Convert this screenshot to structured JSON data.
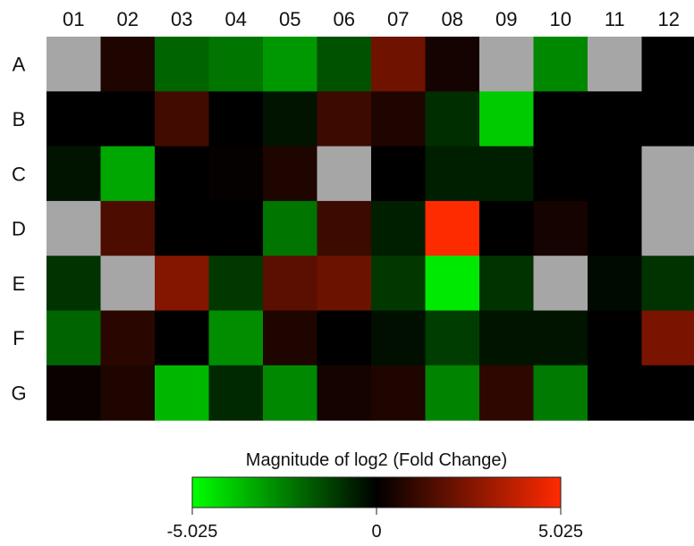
{
  "chart_data": {
    "type": "heatmap",
    "columns": [
      "01",
      "02",
      "03",
      "04",
      "05",
      "06",
      "07",
      "08",
      "09",
      "10",
      "11",
      "12"
    ],
    "rows": [
      "A",
      "B",
      "C",
      "D",
      "E",
      "F",
      "G"
    ],
    "values": [
      [
        null,
        0.6,
        -2.0,
        -2.3,
        -3.0,
        -1.6,
        2.2,
        0.4,
        null,
        -2.7,
        null,
        0.0
      ],
      [
        0.0,
        0.0,
        1.3,
        0.0,
        -0.4,
        1.2,
        0.6,
        -0.9,
        -4.0,
        0.0,
        0.0,
        0.0
      ],
      [
        -0.4,
        -3.3,
        0.0,
        0.1,
        0.6,
        null,
        0.0,
        -0.6,
        -0.6,
        0.0,
        0.0,
        null
      ],
      [
        null,
        1.5,
        0.0,
        0.0,
        -2.3,
        1.2,
        -0.6,
        5.0,
        0.0,
        0.4,
        0.0,
        null
      ],
      [
        -1.0,
        null,
        2.6,
        -1.1,
        1.8,
        2.1,
        -1.1,
        -4.6,
        -1.0,
        null,
        -0.2,
        -1.0
      ],
      [
        -2.0,
        0.8,
        0.0,
        -2.8,
        0.6,
        0.0,
        -0.3,
        -1.2,
        -0.4,
        -0.4,
        0.0,
        2.4
      ],
      [
        0.2,
        0.6,
        -3.6,
        -0.8,
        -2.7,
        0.4,
        0.6,
        -2.6,
        0.9,
        -2.4,
        0.0,
        0.0
      ]
    ],
    "missing_color": "#a6a6a6",
    "color_scale": {
      "title": "Magnitude of log2 (Fold Change)",
      "min": -5.025,
      "mid": 0,
      "max": 5.025,
      "min_label": "-5.025",
      "mid_label": "0",
      "max_label": "5.025",
      "low_color": "#00ff00",
      "mid_color": "#000000",
      "high_color": "#ff2a00"
    }
  }
}
